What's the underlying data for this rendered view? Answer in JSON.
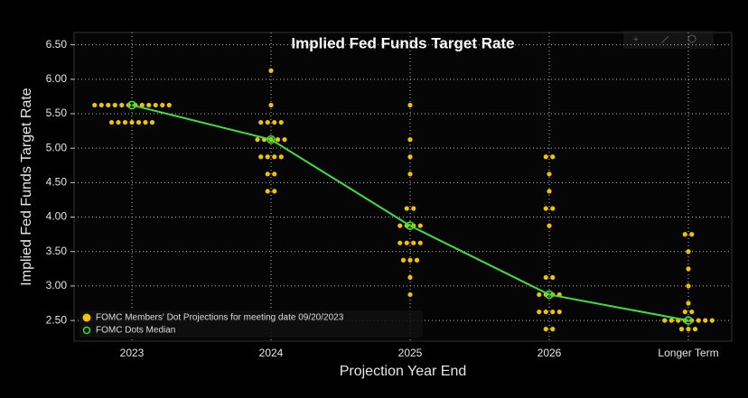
{
  "chart_data": {
    "type": "scatter",
    "title": "Implied Fed Funds Target Rate",
    "y_label": "Implied Fed Funds Target Rate",
    "x_label": "Projection Year End",
    "categories": [
      "2023",
      "2024",
      "2025",
      "2026",
      "Longer Term"
    ],
    "ylim": [
      2.2,
      6.6
    ],
    "yticks": [
      {
        "value": 2.5,
        "label": "2.50"
      },
      {
        "value": 3.0,
        "label": "3.00"
      },
      {
        "value": 3.5,
        "label": "3.50"
      },
      {
        "value": 4.0,
        "label": "4.00"
      },
      {
        "value": 4.5,
        "label": "4.50"
      },
      {
        "value": 5.0,
        "label": "5.00"
      },
      {
        "value": 5.5,
        "label": "5.50"
      },
      {
        "value": 6.0,
        "label": "6.00"
      },
      {
        "value": 6.5,
        "label": "6.50"
      }
    ],
    "grid": true,
    "legend": "lower left",
    "series": [
      {
        "name": "FOMC Members' Dot Projections for meeting date 09/20/2023",
        "color": "#f2c200",
        "kind": "dots",
        "values": [
          [
            5.625,
            5.625,
            5.625,
            5.625,
            5.625,
            5.625,
            5.625,
            5.625,
            5.625,
            5.625,
            5.625,
            5.625,
            5.375,
            5.375,
            5.375,
            5.375,
            5.375,
            5.375,
            5.375
          ],
          [
            6.125,
            5.625,
            5.375,
            5.375,
            5.375,
            5.375,
            5.125,
            5.125,
            5.125,
            5.125,
            5.125,
            4.875,
            4.875,
            4.875,
            4.875,
            4.625,
            4.625,
            4.375,
            4.375
          ],
          [
            5.625,
            5.125,
            4.875,
            4.625,
            4.125,
            4.125,
            3.875,
            3.875,
            3.875,
            3.875,
            3.625,
            3.625,
            3.625,
            3.625,
            3.375,
            3.375,
            3.375,
            3.125,
            2.875
          ],
          [
            4.875,
            4.875,
            4.625,
            4.375,
            4.125,
            4.125,
            3.875,
            3.125,
            3.125,
            2.875,
            2.875,
            2.875,
            2.875,
            2.625,
            2.625,
            2.625,
            2.625,
            2.375,
            2.375
          ],
          [
            3.75,
            3.75,
            3.5,
            3.25,
            3.0,
            2.75,
            2.625,
            2.625,
            2.5,
            2.5,
            2.5,
            2.5,
            2.5,
            2.5,
            2.5,
            2.5,
            2.375,
            2.375,
            2.375
          ]
        ]
      },
      {
        "name": "FOMC Dots Median",
        "color": "#3ee03e",
        "kind": "line",
        "values": [
          5.625,
          5.125,
          3.875,
          2.875,
          2.5
        ]
      }
    ]
  }
}
